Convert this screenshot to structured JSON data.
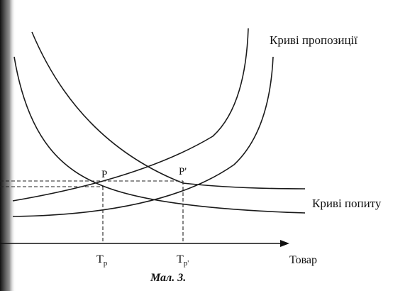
{
  "labels": {
    "supply": "Криві пропозиції",
    "demand": "Криві попиту",
    "p": "P",
    "p_prime": "P'",
    "x_axis": "Товар"
  },
  "ticks": [
    {
      "main": "T",
      "sub": "р"
    },
    {
      "main": "T",
      "sub": "р'"
    }
  ],
  "caption": "Мал. 3."
}
